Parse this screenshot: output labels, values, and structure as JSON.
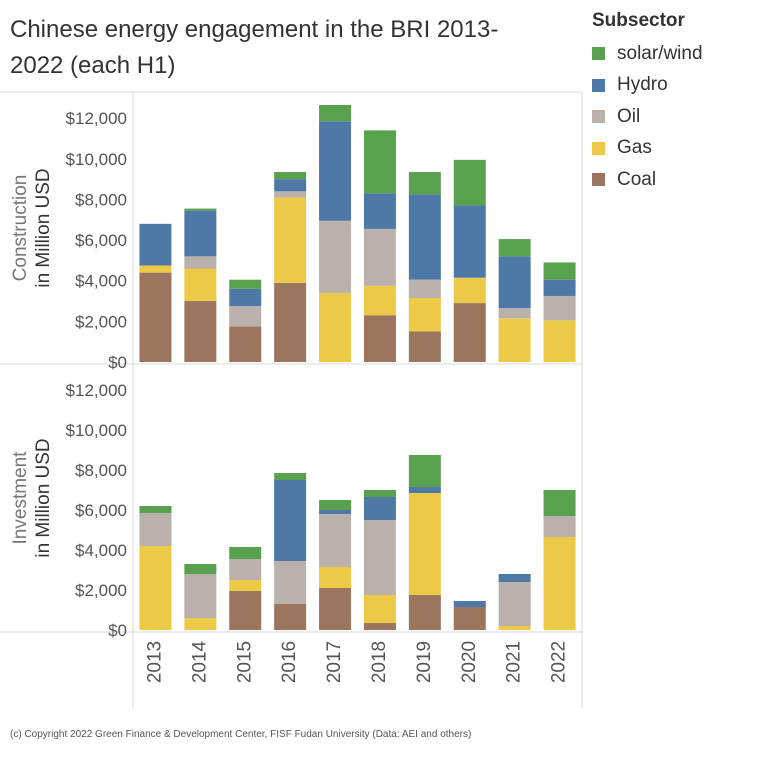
{
  "title": "Chinese energy engagement in the BRI 2013-2022 (each H1)",
  "title_lines": [
    "Chinese energy engagement in the BRI 2013-",
    "2022 (each H1)"
  ],
  "copyright": "(c) Copyright 2022 Green Finance & Development Center, FISF Fudan University (Data: AEI and others)",
  "legend": {
    "title": "Subsector",
    "items": [
      {
        "label": "solar/wind",
        "color": "#59a14f"
      },
      {
        "label": "Hydro",
        "color": "#4e79a7"
      },
      {
        "label": "Oil",
        "color": "#bab0ac"
      },
      {
        "label": "Gas",
        "color": "#edc948"
      },
      {
        "label": "Coal",
        "color": "#9c755f"
      }
    ]
  },
  "chart_data": [
    {
      "type": "bar",
      "stacked": true,
      "panel": "Construction",
      "ylabel_line1": "Construction",
      "ylabel_line2": "in Million USD",
      "categories": [
        "2013",
        "2014",
        "2015",
        "2016",
        "2017",
        "2018",
        "2019",
        "2020",
        "2021",
        "2022"
      ],
      "ylim": [
        0,
        12600
      ],
      "yticks": [
        0,
        2000,
        4000,
        6000,
        8000,
        10000,
        12000
      ],
      "ytick_labels": [
        "$0",
        "$2,000",
        "$4,000",
        "$6,000",
        "$8,000",
        "$10,000",
        "$12,000"
      ],
      "series": [
        {
          "name": "Coal",
          "color": "#9c755f",
          "values": [
            4400,
            3000,
            1750,
            3900,
            0,
            2300,
            1500,
            2900,
            0,
            0
          ]
        },
        {
          "name": "Gas",
          "color": "#edc948",
          "values": [
            350,
            1600,
            0,
            4200,
            3400,
            1450,
            1650,
            1250,
            2150,
            2050
          ]
        },
        {
          "name": "Oil",
          "color": "#bab0ac",
          "values": [
            0,
            600,
            1000,
            300,
            3550,
            2800,
            900,
            0,
            500,
            1200
          ]
        },
        {
          "name": "Hydro",
          "color": "#4e79a7",
          "values": [
            2050,
            2250,
            850,
            600,
            4900,
            1750,
            4200,
            3550,
            2550,
            800
          ]
        },
        {
          "name": "solar/wind",
          "color": "#59a14f",
          "values": [
            0,
            100,
            450,
            350,
            800,
            3100,
            1100,
            2250,
            850,
            850
          ]
        }
      ]
    },
    {
      "type": "bar",
      "stacked": true,
      "panel": "Investment",
      "ylabel_line1": "Investment",
      "ylabel_line2": "in Million USD",
      "categories": [
        "2013",
        "2014",
        "2015",
        "2016",
        "2017",
        "2018",
        "2019",
        "2020",
        "2021",
        "2022"
      ],
      "ylim": [
        0,
        12600
      ],
      "yticks": [
        0,
        2000,
        4000,
        6000,
        8000,
        10000,
        12000
      ],
      "ytick_labels": [
        "$0",
        "$2,000",
        "$4,000",
        "$6,000",
        "$8,000",
        "$10,000",
        "$12,000"
      ],
      "series": [
        {
          "name": "Coal",
          "color": "#9c755f",
          "values": [
            0,
            0,
            1950,
            1300,
            2100,
            350,
            1750,
            1150,
            0,
            0
          ]
        },
        {
          "name": "Gas",
          "color": "#edc948",
          "values": [
            4200,
            600,
            550,
            0,
            1050,
            1400,
            5100,
            0,
            200,
            4650
          ]
        },
        {
          "name": "Oil",
          "color": "#bab0ac",
          "values": [
            1650,
            2200,
            1050,
            2150,
            2650,
            3750,
            0,
            0,
            2200,
            1050
          ]
        },
        {
          "name": "Hydro",
          "color": "#4e79a7",
          "values": [
            0,
            0,
            0,
            4050,
            200,
            1150,
            300,
            300,
            400,
            0
          ]
        },
        {
          "name": "solar/wind",
          "color": "#59a14f",
          "values": [
            350,
            500,
            600,
            350,
            500,
            350,
            1600,
            0,
            0,
            1300
          ]
        }
      ]
    }
  ]
}
